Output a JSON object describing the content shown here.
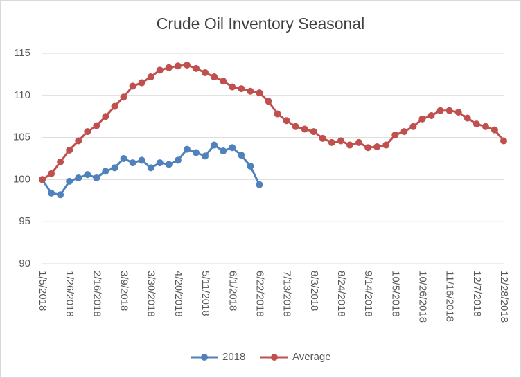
{
  "chart_data": {
    "type": "line",
    "title": "Crude Oil Inventory Seasonal",
    "categories": [
      "1/5/2018",
      null,
      null,
      "1/26/2018",
      null,
      null,
      "2/16/2018",
      null,
      null,
      "3/9/2018",
      null,
      null,
      "3/30/2018",
      null,
      null,
      "4/20/2018",
      null,
      null,
      "5/11/2018",
      null,
      null,
      "6/1/2018",
      null,
      null,
      "6/22/2018",
      null,
      null,
      "7/13/2018",
      null,
      null,
      "8/3/2018",
      null,
      null,
      "8/24/2018",
      null,
      null,
      "9/14/2018",
      null,
      null,
      "10/5/2018",
      null,
      null,
      "10/26/2018",
      null,
      null,
      "11/16/2018",
      null,
      null,
      "12/7/2018",
      null,
      null,
      "12/28/2018"
    ],
    "series": [
      {
        "name": "2018",
        "color": "#4f81bd",
        "values": [
          100,
          98.4,
          98.2,
          99.8,
          100.2,
          100.6,
          100.2,
          101.0,
          101.4,
          102.5,
          102.0,
          102.3,
          101.4,
          102.0,
          101.8,
          102.3,
          103.6,
          103.2,
          102.8,
          104.1,
          103.4,
          103.8,
          102.9,
          101.6,
          99.4,
          null,
          null,
          null,
          null,
          null,
          null,
          null,
          null,
          null,
          null,
          null,
          null,
          null,
          null,
          null,
          null,
          null,
          null,
          null,
          null,
          null,
          null,
          null,
          null,
          null,
          null,
          null
        ]
      },
      {
        "name": "Average",
        "color": "#c0504d",
        "values": [
          100,
          100.7,
          102.1,
          103.5,
          104.6,
          105.7,
          106.4,
          107.5,
          108.7,
          109.8,
          111.1,
          111.5,
          112.2,
          113.0,
          113.3,
          113.5,
          113.6,
          113.2,
          112.7,
          112.2,
          111.7,
          111.0,
          110.8,
          110.5,
          110.3,
          109.3,
          107.8,
          107.0,
          106.3,
          106.0,
          105.7,
          104.9,
          104.4,
          104.6,
          104.1,
          104.4,
          103.8,
          103.9,
          104.1,
          105.3,
          105.7,
          106.3,
          107.2,
          107.6,
          108.2,
          108.2,
          108.0,
          107.3,
          106.6,
          106.3,
          105.9,
          104.6
        ]
      }
    ],
    "ylim": [
      90,
      115
    ],
    "yticks": [
      90,
      95,
      100,
      105,
      110,
      115
    ],
    "grid": true,
    "legend": "bottom"
  }
}
